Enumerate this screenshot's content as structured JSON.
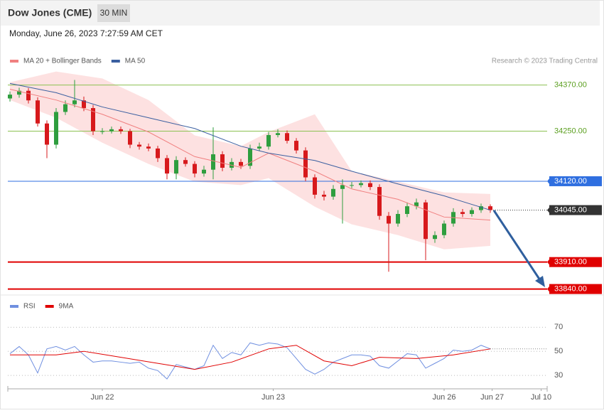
{
  "header": {
    "title": "Dow Jones (CME)",
    "interval": "30 MIN",
    "timestamp": "Monday, June 26, 2023 7:27:59 AM CET"
  },
  "chart_data": [
    {
      "type": "candlestick",
      "credit": "Research © 2023 Trading Central",
      "ylim": [
        33830,
        34480
      ],
      "up_color": "#2e9e3e",
      "down_color": "#d7191c",
      "open": [
        34335,
        34345,
        34355,
        34330,
        34270,
        34215,
        34300,
        34320,
        34330,
        34310,
        34250,
        34250,
        34255,
        34250,
        34215,
        34210,
        34205,
        34180,
        34140,
        34175,
        34165,
        34140,
        34150,
        34190,
        34155,
        34170,
        34160,
        34205,
        34210,
        34240,
        34245,
        34225,
        34200,
        34130,
        34085,
        34080,
        34100,
        34110,
        34110,
        34115,
        34105,
        34030,
        34010,
        34035,
        34055,
        34065,
        33970,
        33980,
        34010,
        34040,
        34035,
        34045,
        34055
      ],
      "high": [
        34353,
        34363,
        34362,
        34338,
        34278,
        34310,
        34330,
        34383,
        34340,
        34318,
        34258,
        34262,
        34262,
        34256,
        34222,
        34218,
        34212,
        34188,
        34185,
        34182,
        34172,
        34160,
        34260,
        34198,
        34180,
        34178,
        34215,
        34220,
        34248,
        34255,
        34252,
        34232,
        34208,
        34138,
        34095,
        34110,
        34125,
        34118,
        34122,
        34122,
        34112,
        34040,
        34045,
        34065,
        34075,
        34072,
        33990,
        34018,
        34050,
        34048,
        34052,
        34062,
        34060
      ],
      "low": [
        34327,
        34337,
        34322,
        34262,
        34180,
        34205,
        34292,
        34312,
        34302,
        34240,
        34242,
        34244,
        34243,
        34206,
        34202,
        34198,
        34170,
        34125,
        34125,
        34158,
        34130,
        34132,
        34125,
        34146,
        34148,
        34152,
        34152,
        34198,
        34202,
        34234,
        34218,
        34192,
        34120,
        34075,
        34070,
        34072,
        34010,
        34102,
        34104,
        34097,
        34020,
        33885,
        34002,
        34027,
        34047,
        33915,
        33960,
        33972,
        34002,
        34027,
        34028,
        34038,
        34038
      ],
      "close": [
        34345,
        34355,
        34330,
        34270,
        34215,
        34300,
        34320,
        34330,
        34310,
        34250,
        34250,
        34255,
        34250,
        34215,
        34210,
        34205,
        34180,
        34140,
        34175,
        34165,
        34140,
        34150,
        34190,
        34155,
        34170,
        34160,
        34205,
        34210,
        34240,
        34245,
        34225,
        34200,
        34130,
        34085,
        34080,
        34100,
        34110,
        34110,
        34115,
        34105,
        34030,
        34010,
        34035,
        34055,
        34065,
        33970,
        33980,
        34010,
        34040,
        34035,
        34045,
        34055,
        34045
      ],
      "series": [
        {
          "name": "MA 20 + Bollinger Bands",
          "color": "#f08080",
          "band_color": "#fde1e1",
          "x": [
            0,
            5,
            10,
            15,
            20,
            25,
            28,
            33,
            37,
            42,
            47,
            52
          ],
          "values": [
            34359,
            34331,
            34294,
            34248,
            34184,
            34156,
            34193,
            34146,
            34100,
            34073,
            34027,
            34019
          ],
          "upper": [
            34377,
            34405,
            34387,
            34331,
            34239,
            34211,
            34248,
            34294,
            34146,
            34119,
            34091,
            34087
          ],
          "lower": [
            34331,
            34285,
            34220,
            34165,
            34119,
            34110,
            34128,
            34054,
            34008,
            33980,
            33943,
            33952
          ]
        },
        {
          "name": "MA 50",
          "color": "#3a5fa0",
          "x": [
            0,
            5,
            10,
            15,
            20,
            25,
            28,
            33,
            37,
            42,
            47,
            52
          ],
          "values": [
            34374,
            34350,
            34313,
            34285,
            34257,
            34211,
            34193,
            34174,
            34146,
            34113,
            34082,
            34045
          ]
        }
      ],
      "levels": [
        {
          "value": 34370,
          "label": "34370.00",
          "color": "#8cc152",
          "boxed": false,
          "dotted": false
        },
        {
          "value": 34250,
          "label": "34250.00",
          "color": "#8cc152",
          "boxed": false,
          "dotted": false
        },
        {
          "value": 34120,
          "label": "34120.00",
          "color": "#2f6fe0",
          "boxed": true,
          "dotted": false
        },
        {
          "value": 34045,
          "label": "34045.00",
          "color": "#333333",
          "boxed": true,
          "dotted": true
        },
        {
          "value": 33910,
          "label": "33910.00",
          "color": "#e00000",
          "boxed": true,
          "dotted": false
        },
        {
          "value": 33840,
          "label": "33840.00",
          "color": "#e00000",
          "boxed": true,
          "dotted": false
        }
      ]
    },
    {
      "type": "line",
      "ylim": [
        20,
        82
      ],
      "yticks": [
        70,
        50,
        30
      ],
      "grid": true,
      "xticks": [
        {
          "value": 10,
          "label": "Jun 22"
        },
        {
          "value": 28.5,
          "label": "Jun 23"
        },
        {
          "value": 47,
          "label": "Jun 26"
        },
        {
          "value": 52.2,
          "label": "Jun 27"
        },
        {
          "value": 57.5,
          "label": "Jul 10"
        }
      ],
      "series": [
        {
          "name": "RSI",
          "color": "#6f8fe0",
          "values": [
            48,
            54,
            47,
            32,
            52,
            54,
            51,
            54,
            47,
            41,
            42,
            42,
            41,
            40,
            41,
            36,
            34,
            27,
            39,
            37,
            35,
            38,
            55,
            44,
            49,
            47,
            57,
            55,
            57,
            56,
            53,
            44,
            35,
            31,
            35,
            41,
            44,
            47,
            47,
            46,
            38,
            36,
            42,
            48,
            47,
            36,
            40,
            44,
            51,
            50,
            51,
            55,
            52
          ]
        },
        {
          "name": "9MA",
          "color": "#e00000",
          "x": [
            0,
            5,
            8,
            12,
            16,
            20,
            24,
            28,
            31,
            34,
            37,
            40,
            44,
            48,
            52
          ],
          "values": [
            47,
            47,
            50,
            45,
            40,
            35,
            41,
            52,
            55,
            42,
            38,
            45,
            44,
            47,
            52
          ]
        }
      ]
    }
  ]
}
